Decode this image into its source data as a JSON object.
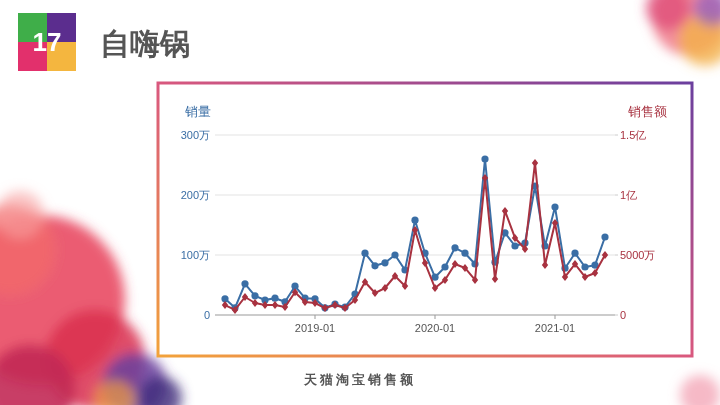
{
  "page_number": "17",
  "page_title": "自嗨锅",
  "source": "天猫淘宝销售额",
  "chart_data": {
    "type": "line",
    "x": [
      "2018-04",
      "2018-05",
      "2018-06",
      "2018-07",
      "2018-08",
      "2018-09",
      "2018-10",
      "2018-11",
      "2018-12",
      "2019-01",
      "2019-02",
      "2019-03",
      "2019-04",
      "2019-05",
      "2019-06",
      "2019-07",
      "2019-08",
      "2019-09",
      "2019-10",
      "2019-11",
      "2019-12",
      "2020-01",
      "2020-02",
      "2020-03",
      "2020-04",
      "2020-05",
      "2020-06",
      "2020-07",
      "2020-08",
      "2020-09",
      "2020-10",
      "2020-11",
      "2020-12",
      "2021-01",
      "2021-02",
      "2021-03",
      "2021-04",
      "2021-05",
      "2021-06"
    ],
    "xlim": [
      "2018-03",
      "2021-07"
    ],
    "xticks": [
      "2019-01",
      "2020-01",
      "2021-01"
    ],
    "ylim": [
      0,
      300
    ],
    "yticks": [
      0,
      {
        "value": 100,
        "label": "100万"
      },
      {
        "value": 200,
        "label": "200万"
      },
      {
        "value": 300,
        "label": "300万"
      }
    ],
    "y2lim": [
      0,
      15000
    ],
    "y2ticks": [
      0,
      {
        "value": 5000,
        "label": "5000万"
      },
      {
        "value": 10000,
        "label": "1亿"
      },
      {
        "value": 15000,
        "label": "1.5亿"
      }
    ],
    "grid": true,
    "series": [
      {
        "name": "销量",
        "color": "#3a6ea5",
        "marker": "circle",
        "values": [
          27,
          12,
          52,
          32,
          25,
          28,
          22,
          48,
          28,
          27,
          12,
          18,
          13,
          35,
          103,
          82,
          87,
          100,
          75,
          158,
          103,
          63,
          80,
          112,
          103,
          85,
          260,
          88,
          137,
          115,
          120,
          215,
          115,
          180,
          78,
          103,
          80,
          83,
          130
        ]
      },
      {
        "name": "销售额",
        "color": "#a83240",
        "marker": "diamond",
        "axis": "y2",
        "values": [
          830,
          420,
          1500,
          1000,
          830,
          830,
          670,
          1900,
          1080,
          1000,
          580,
          830,
          580,
          1250,
          2750,
          1830,
          2250,
          3250,
          2420,
          7080,
          4330,
          2250,
          2920,
          4250,
          3920,
          2920,
          11420,
          3000,
          8670,
          6420,
          5500,
          12670,
          4170,
          7670,
          3170,
          4250,
          3170,
          3500,
          5000
        ]
      }
    ]
  }
}
